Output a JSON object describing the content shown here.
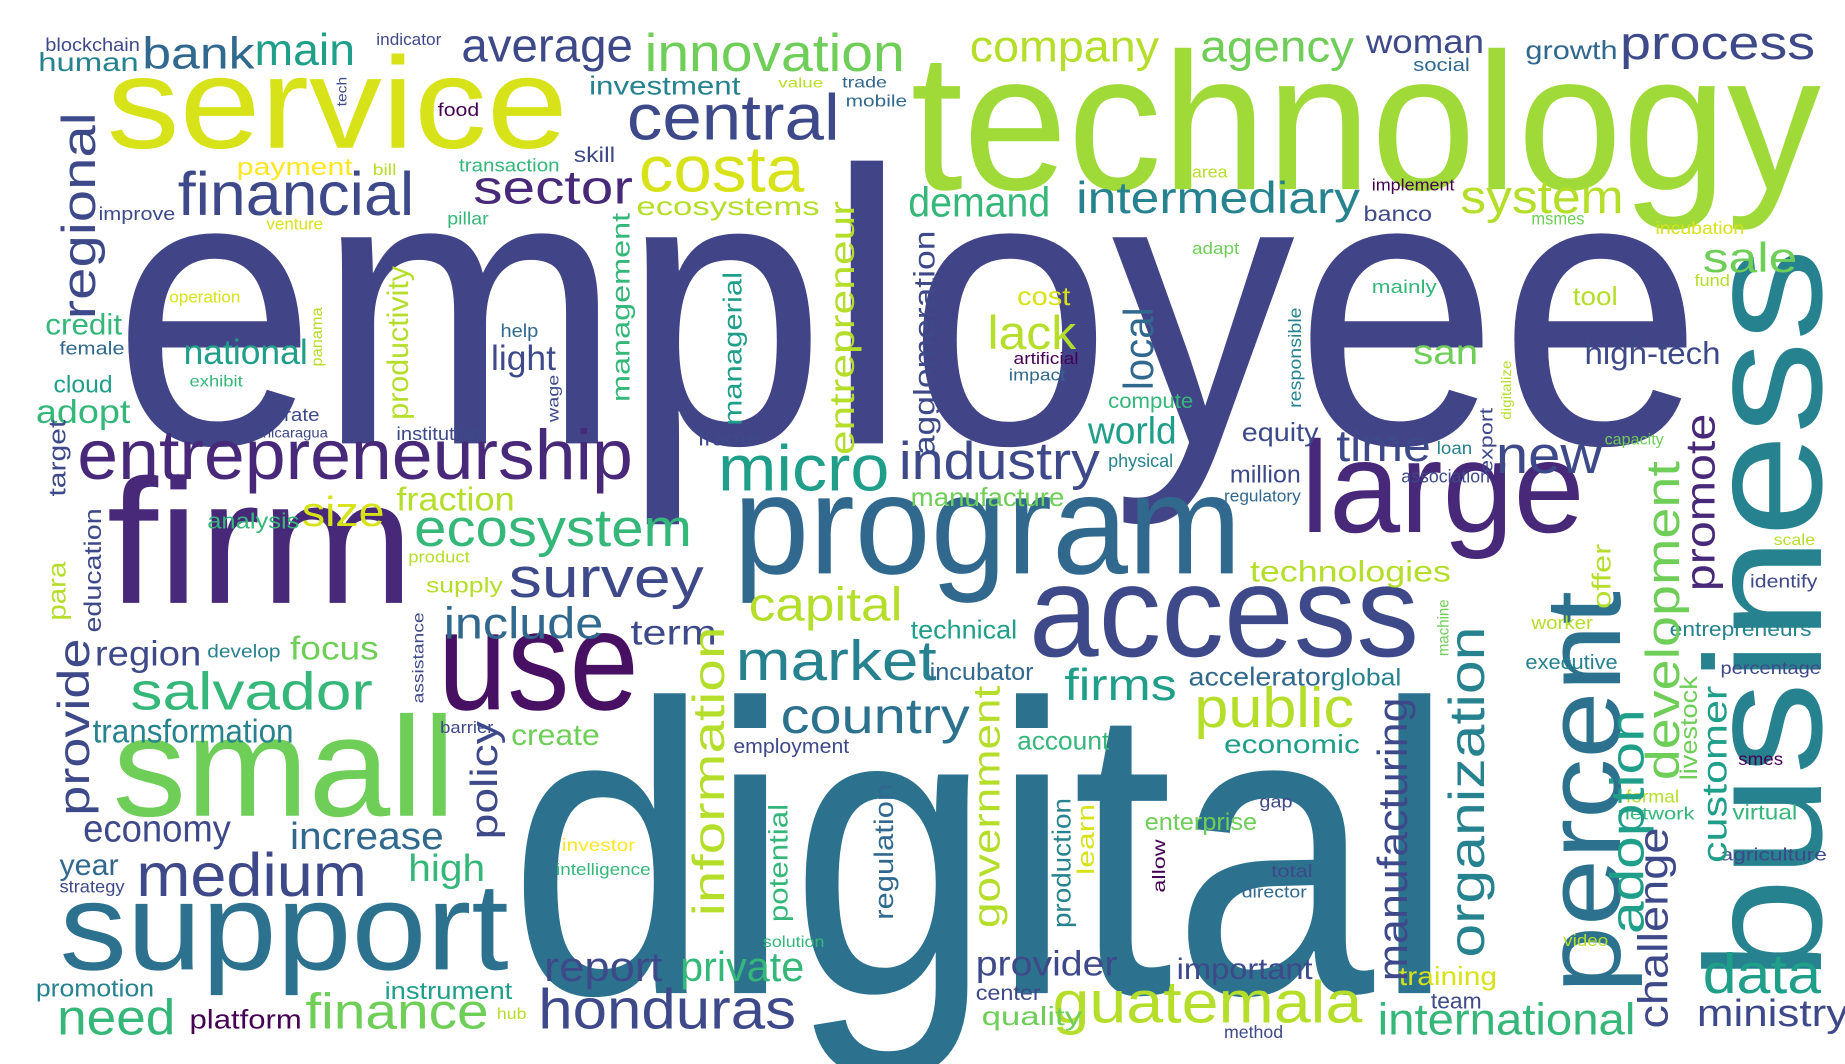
{
  "words": [
    "employee",
    "digital",
    "technology",
    "business",
    "firm",
    "service",
    "program",
    "access",
    "large",
    "use",
    "small",
    "support",
    "percent",
    "entrepreneurship",
    "central",
    "costa",
    "innovation",
    "financial",
    "sector",
    "average",
    "bank",
    "main",
    "company",
    "agency",
    "woman",
    "process",
    "growth",
    "social",
    "micro",
    "industry",
    "ecosystem",
    "survey",
    "include",
    "salvador",
    "market",
    "country",
    "capital",
    "term",
    "intermediary",
    "demand",
    "system",
    "lack",
    "cost",
    "honduras",
    "report",
    "private",
    "guatemala",
    "provider",
    "important",
    "international",
    "ministry",
    "data",
    "finance",
    "need",
    "platform",
    "medium",
    "increase",
    "economy",
    "year",
    "strategy",
    "high",
    "transformation",
    "region",
    "develop",
    "focus",
    "size",
    "fraction",
    "analysis",
    "national",
    "credit",
    "female",
    "cloud",
    "adopt",
    "light",
    "help",
    "public",
    "firms",
    "accelerator",
    "global",
    "economic",
    "technologies",
    "time",
    "new",
    "equity",
    "million",
    "regulatory",
    "world",
    "compute",
    "physical",
    "manufacture",
    "sale",
    "san",
    "high-tech",
    "tool",
    "mainly",
    "association",
    "loan",
    "incubator",
    "technical",
    "account",
    "employment",
    "create",
    "enterprise",
    "gap",
    "center",
    "quality",
    "training",
    "team",
    "method",
    "instrument",
    "promotion",
    "hub",
    "investor",
    "intelligence",
    "solution",
    "total",
    "director",
    "investment",
    "skill",
    "transaction",
    "food",
    "bill",
    "payment",
    "venture",
    "improve",
    "pillar",
    "value",
    "trade",
    "mobile",
    "indicator",
    "blockchain",
    "human",
    "ecosystems",
    "area",
    "implement",
    "banco",
    "msmes",
    "incubation",
    "adapt",
    "fund",
    "operation",
    "exhibit",
    "institution",
    "rate",
    "nicaragua",
    "artificial",
    "impact",
    "frame",
    "capacity",
    "scale",
    "identify",
    "entrepreneurs",
    "executive",
    "percentage",
    "worker",
    "smes",
    "formal",
    "network",
    "virtual",
    "agriculture",
    "video",
    "product",
    "supply",
    "barrier",
    "regional",
    "provide",
    "policy",
    "para",
    "education",
    "target",
    "productivity",
    "management",
    "managerial",
    "entrepreneur",
    "agglomeration",
    "local",
    "responsible",
    "digitalize",
    "export",
    "information",
    "government",
    "potential",
    "regulation",
    "production",
    "learn",
    "allow",
    "manufacturing",
    "organization",
    "promote",
    "development",
    "adoption",
    "challenge",
    "customer",
    "livestock",
    "offer",
    "machine",
    "assistance",
    "wage",
    "panama",
    "tech"
  ]
}
